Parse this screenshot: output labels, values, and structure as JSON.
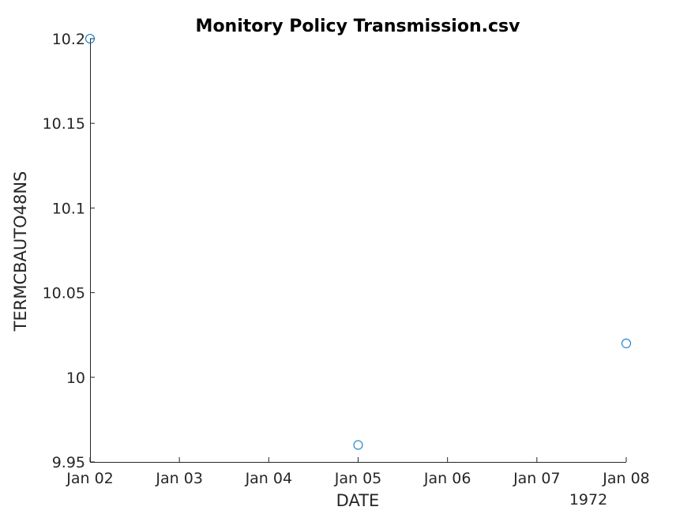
{
  "chart_data": {
    "type": "scatter",
    "title": "Monitory Policy Transmission.csv",
    "xlabel": "DATE",
    "ylabel": "TERMCBAUTO48NS",
    "x_year_label": "1972",
    "x_ticks": [
      "Jan 02",
      "Jan 03",
      "Jan 04",
      "Jan 05",
      "Jan 06",
      "Jan 07",
      "Jan 08"
    ],
    "x_range": [
      "1972-01-02",
      "1972-01-08"
    ],
    "y_ticks": [
      "9.95",
      "10",
      "10.05",
      "10.1",
      "10.15",
      "10.2"
    ],
    "ylim": [
      9.95,
      10.2
    ],
    "grid": false,
    "marker_color": "#0072BD",
    "series": [
      {
        "points": [
          {
            "x": "1972-01-02",
            "y": 10.2
          },
          {
            "x": "1972-01-05",
            "y": 9.96
          },
          {
            "x": "1972-01-08",
            "y": 10.02
          }
        ]
      }
    ]
  }
}
